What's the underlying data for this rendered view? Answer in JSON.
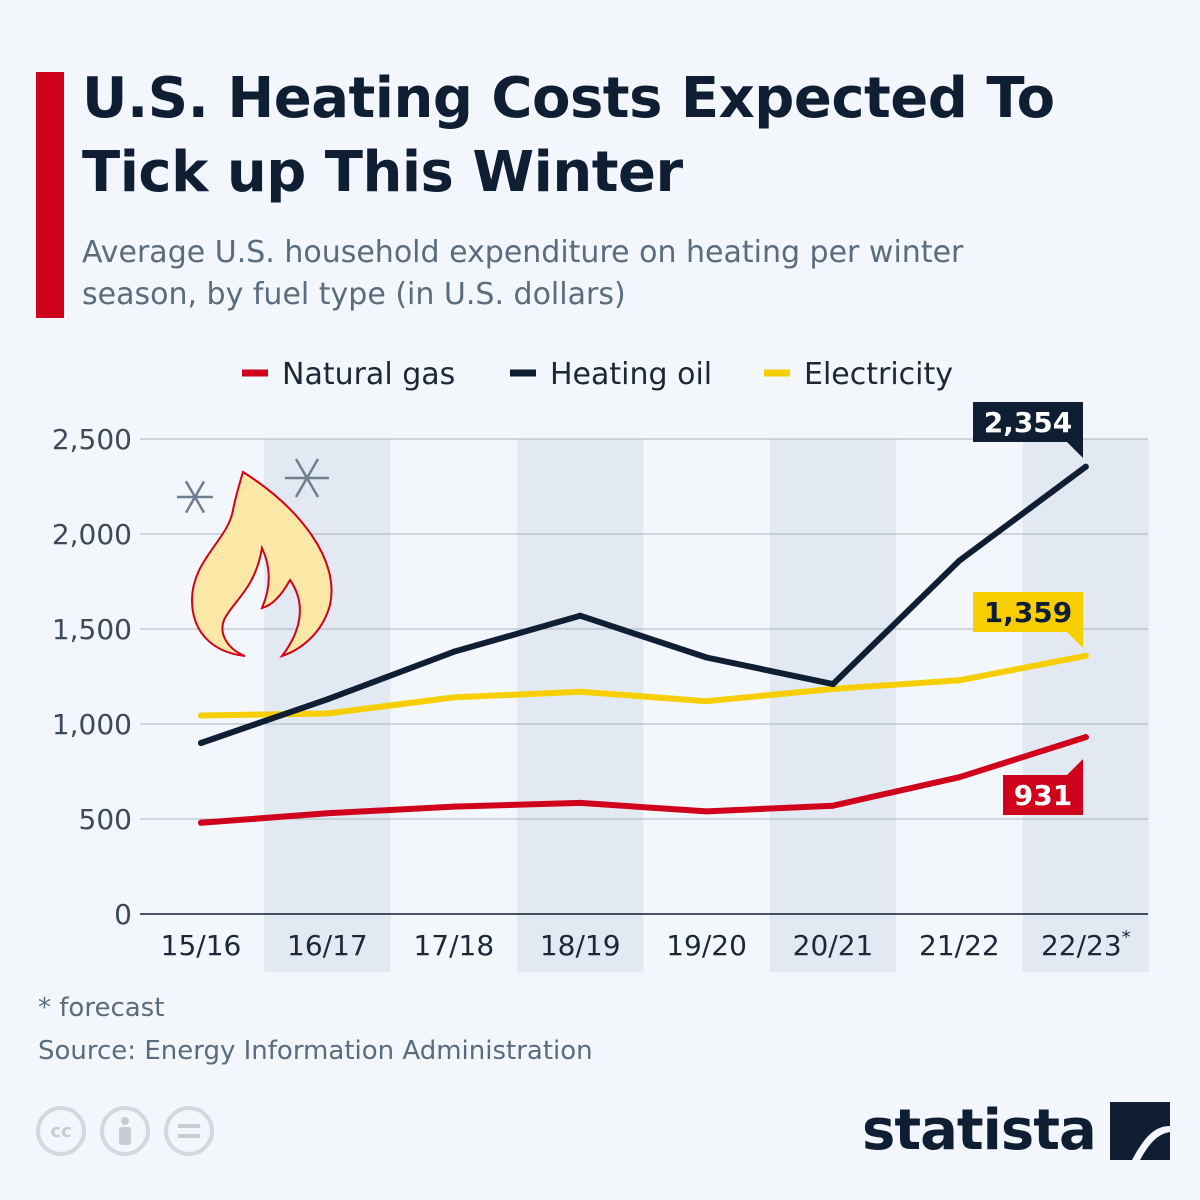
{
  "header": {
    "title": "U.S. Heating Costs Expected To Tick up This Winter",
    "subtitle": "Average U.S. household expenditure on heating per winter season, by fuel type (in U.S. dollars)"
  },
  "chart_data": {
    "type": "line",
    "title": "U.S. Heating Costs Expected To Tick up This Winter",
    "subtitle": "Average U.S. household expenditure on heating per winter season, by fuel type (in U.S. dollars)",
    "categories": [
      "15/16",
      "16/17",
      "17/18",
      "18/19",
      "19/20",
      "20/21",
      "21/22",
      "22/23*"
    ],
    "series": [
      {
        "name": "Natural gas",
        "color": "#d0021b",
        "values": [
          480,
          530,
          565,
          585,
          540,
          570,
          720,
          931
        ],
        "end_label": "931"
      },
      {
        "name": "Heating oil",
        "color": "#0f1e33",
        "values": [
          900,
          1130,
          1380,
          1570,
          1350,
          1210,
          1860,
          2354
        ],
        "end_label": "2,354"
      },
      {
        "name": "Electricity",
        "color": "#f7cf00",
        "values": [
          1045,
          1055,
          1140,
          1170,
          1120,
          1185,
          1230,
          1359
        ],
        "end_label": "1,359"
      }
    ],
    "y_ticks": [
      "0",
      "500",
      "1,000",
      "1,500",
      "2,000",
      "2,500"
    ],
    "ylim": [
      0,
      2500
    ],
    "grid": true,
    "legend_position": "top-center",
    "xlabel": "",
    "ylabel": ""
  },
  "footer": {
    "forecast_note": "* forecast",
    "source": "Source: Energy Information Administration",
    "brand": "statista",
    "license_icons": [
      "cc",
      "by",
      "nd"
    ]
  }
}
